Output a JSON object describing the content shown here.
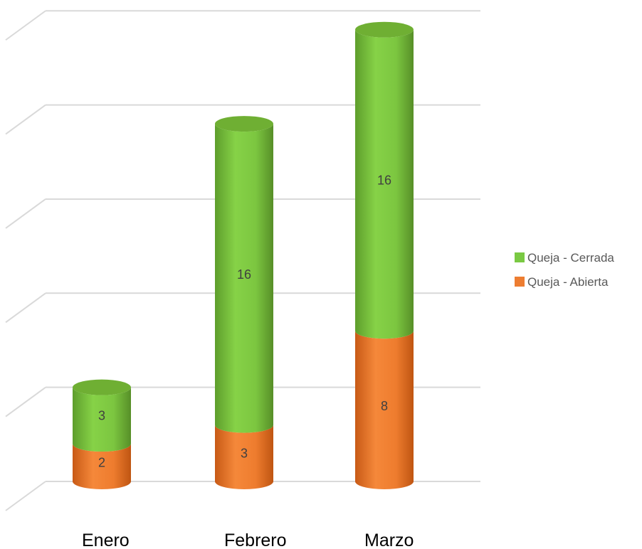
{
  "chart_data": {
    "type": "bar",
    "stacked": true,
    "style": "3d-cylinder",
    "categories": [
      "Enero",
      "Febrero",
      "Marzo"
    ],
    "series": [
      {
        "name": "Queja - Abierta",
        "values": [
          2,
          3,
          8
        ],
        "color": "#ED7D31"
      },
      {
        "name": "Queja - Cerrada",
        "values": [
          3,
          16,
          16
        ],
        "color": "#7AC943"
      }
    ],
    "ylim": [
      0,
      25
    ],
    "grid": true,
    "legend_position": "right"
  }
}
